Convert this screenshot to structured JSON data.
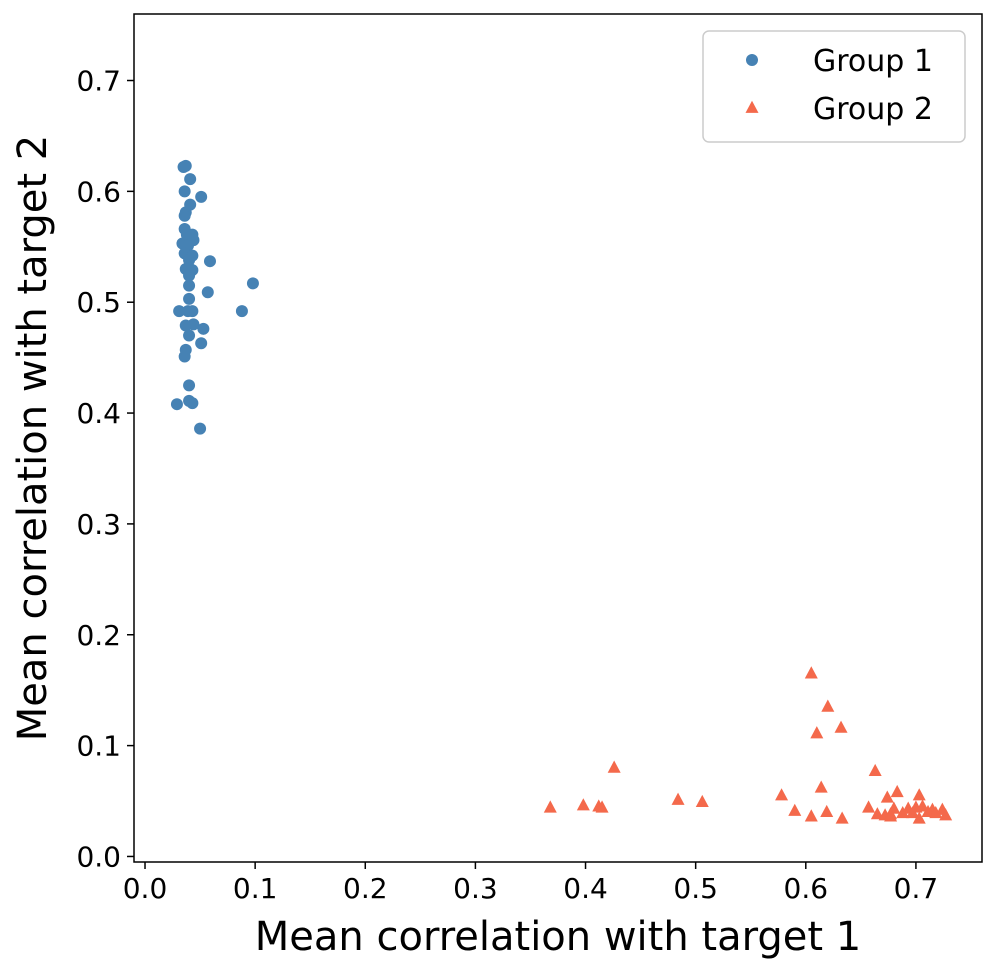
{
  "chart_data": {
    "type": "scatter",
    "title": "",
    "xlabel": "Mean correlation with target 1",
    "ylabel": "Mean correlation with target 2",
    "xlim": [
      -0.01,
      0.76
    ],
    "ylim": [
      -0.005,
      0.76
    ],
    "xticks": [
      0.0,
      0.1,
      0.2,
      0.3,
      0.4,
      0.5,
      0.6,
      0.7
    ],
    "xtick_labels": [
      "0.0",
      "0.1",
      "0.2",
      "0.3",
      "0.4",
      "0.5",
      "0.6",
      "0.7"
    ],
    "yticks": [
      0.0,
      0.1,
      0.2,
      0.3,
      0.4,
      0.5,
      0.6,
      0.7
    ],
    "ytick_labels": [
      "0.0",
      "0.1",
      "0.2",
      "0.3",
      "0.4",
      "0.5",
      "0.6",
      "0.7"
    ],
    "grid": false,
    "legend_position": "top-right",
    "series": [
      {
        "name": "Group 1",
        "marker": "circle",
        "color": "#4682B4",
        "points": [
          [
            0.037,
            0.623
          ],
          [
            0.035,
            0.622
          ],
          [
            0.041,
            0.611
          ],
          [
            0.036,
            0.6
          ],
          [
            0.051,
            0.595
          ],
          [
            0.041,
            0.588
          ],
          [
            0.037,
            0.581
          ],
          [
            0.036,
            0.578
          ],
          [
            0.036,
            0.566
          ],
          [
            0.038,
            0.561
          ],
          [
            0.043,
            0.561
          ],
          [
            0.044,
            0.556
          ],
          [
            0.034,
            0.553
          ],
          [
            0.039,
            0.551
          ],
          [
            0.036,
            0.544
          ],
          [
            0.043,
            0.542
          ],
          [
            0.04,
            0.538
          ],
          [
            0.059,
            0.537
          ],
          [
            0.04,
            0.531
          ],
          [
            0.043,
            0.529
          ],
          [
            0.037,
            0.53
          ],
          [
            0.04,
            0.524
          ],
          [
            0.098,
            0.517
          ],
          [
            0.04,
            0.515
          ],
          [
            0.057,
            0.509
          ],
          [
            0.04,
            0.503
          ],
          [
            0.031,
            0.492
          ],
          [
            0.039,
            0.492
          ],
          [
            0.043,
            0.492
          ],
          [
            0.088,
            0.492
          ],
          [
            0.044,
            0.48
          ],
          [
            0.037,
            0.479
          ],
          [
            0.053,
            0.476
          ],
          [
            0.04,
            0.47
          ],
          [
            0.051,
            0.463
          ],
          [
            0.037,
            0.457
          ],
          [
            0.036,
            0.451
          ],
          [
            0.04,
            0.425
          ],
          [
            0.04,
            0.411
          ],
          [
            0.029,
            0.408
          ],
          [
            0.043,
            0.409
          ],
          [
            0.05,
            0.386
          ]
        ]
      },
      {
        "name": "Group 2",
        "marker": "triangle",
        "color": "#F4694B",
        "points": [
          [
            0.605,
            0.165
          ],
          [
            0.62,
            0.135
          ],
          [
            0.632,
            0.116
          ],
          [
            0.61,
            0.111
          ],
          [
            0.426,
            0.08
          ],
          [
            0.663,
            0.077
          ],
          [
            0.614,
            0.062
          ],
          [
            0.683,
            0.058
          ],
          [
            0.578,
            0.055
          ],
          [
            0.674,
            0.053
          ],
          [
            0.703,
            0.055
          ],
          [
            0.484,
            0.051
          ],
          [
            0.506,
            0.049
          ],
          [
            0.398,
            0.046
          ],
          [
            0.412,
            0.045
          ],
          [
            0.368,
            0.044
          ],
          [
            0.415,
            0.044
          ],
          [
            0.657,
            0.044
          ],
          [
            0.59,
            0.041
          ],
          [
            0.619,
            0.04
          ],
          [
            0.68,
            0.043
          ],
          [
            0.693,
            0.043
          ],
          [
            0.7,
            0.044
          ],
          [
            0.706,
            0.045
          ],
          [
            0.715,
            0.042
          ],
          [
            0.724,
            0.042
          ],
          [
            0.665,
            0.038
          ],
          [
            0.672,
            0.037
          ],
          [
            0.677,
            0.038
          ],
          [
            0.688,
            0.039
          ],
          [
            0.697,
            0.039
          ],
          [
            0.711,
            0.04
          ],
          [
            0.718,
            0.039
          ],
          [
            0.727,
            0.037
          ],
          [
            0.605,
            0.036
          ],
          [
            0.633,
            0.034
          ],
          [
            0.677,
            0.036
          ],
          [
            0.703,
            0.034
          ]
        ]
      }
    ]
  }
}
